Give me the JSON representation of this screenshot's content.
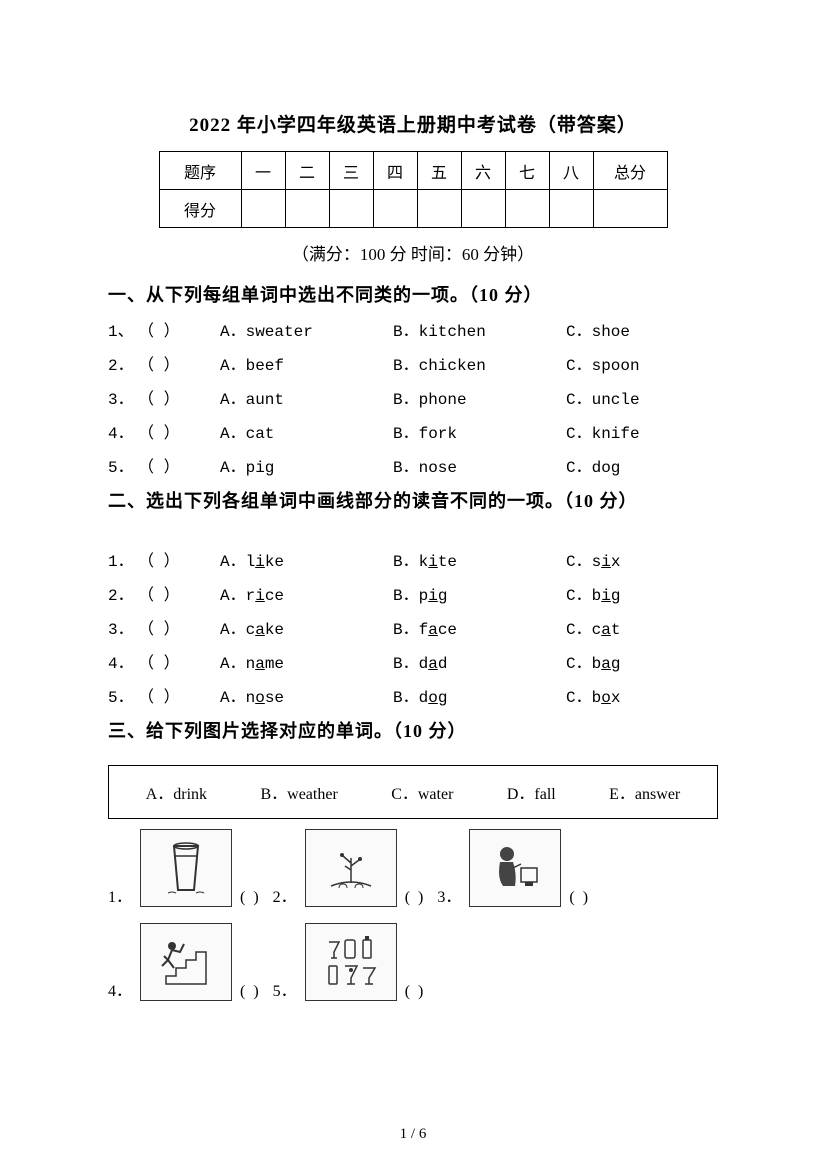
{
  "title": "2022 年小学四年级英语上册期中考试卷（带答案）",
  "scoreTable": {
    "row1Label": "题序",
    "row2Label": "得分",
    "columns": [
      "一",
      "二",
      "三",
      "四",
      "五",
      "六",
      "七",
      "八"
    ],
    "totalLabel": "总分"
  },
  "subtitle": "（满分：100 分    时间：60 分钟）",
  "section1": {
    "header": "一、从下列每组单词中选出不同类的一项。（10 分）",
    "rows": [
      {
        "num": "1、",
        "a": "A．sweater",
        "b": "B．kitchen",
        "c": "C．shoe"
      },
      {
        "num": "2．",
        "a": "A．beef",
        "b": "B．chicken",
        "c": "C．spoon"
      },
      {
        "num": "3．",
        "a": "A．aunt",
        "b": "B．phone",
        "c": "C．uncle"
      },
      {
        "num": "4．",
        "a": "A．cat",
        "b": "B．fork",
        "c": "C．knife"
      },
      {
        "num": "5．",
        "a": "A．pig",
        "b": "B．nose",
        "c": "C．dog"
      }
    ]
  },
  "section2": {
    "header": "二、选出下列各组单词中画线部分的读音不同的一项。（10 分）",
    "rows": [
      {
        "num": "1．",
        "a1": "A．l",
        "a2": "i",
        "a3": "ke",
        "b1": "B．k",
        "b2": "i",
        "b3": "te",
        "c1": "C．s",
        "c2": "i",
        "c3": "x"
      },
      {
        "num": "2．",
        "a1": "A．r",
        "a2": "i",
        "a3": "ce",
        "b1": "B．p",
        "b2": "i",
        "b3": "g",
        "c1": "C．b",
        "c2": "i",
        "c3": "g"
      },
      {
        "num": "3．",
        "a1": "A．c",
        "a2": "a",
        "a3": "ke",
        "b1": "B．f",
        "b2": "a",
        "b3": "ce",
        "c1": "C．c",
        "c2": "a",
        "c3": "t"
      },
      {
        "num": "4．",
        "a1": "A．n",
        "a2": "a",
        "a3": "me",
        "b1": "B．d",
        "b2": "a",
        "b3": "d",
        "c1": "C．b",
        "c2": "a",
        "c3": "g"
      },
      {
        "num": "5．",
        "a1": "A．n",
        "a2": "o",
        "a3": "se",
        "b1": "B．d",
        "b2": "o",
        "b3": "g",
        "c1": "C．b",
        "c2": "o",
        "c3": "x"
      }
    ]
  },
  "section3": {
    "header": "三、给下列图片选择对应的单词。（10 分）",
    "options": [
      "A．drink",
      "B．weather",
      "C．water",
      "D．fall",
      "E．answer"
    ],
    "items": [
      {
        "num": "1．",
        "iconDesc": "glass"
      },
      {
        "num": "2．",
        "iconDesc": "watering"
      },
      {
        "num": "3．",
        "iconDesc": "answer"
      },
      {
        "num": "4．",
        "iconDesc": "fall"
      },
      {
        "num": "5．",
        "iconDesc": "drinks"
      }
    ],
    "paren": "(        )"
  },
  "paren": "（    ）",
  "pageNumber": "1 / 6"
}
